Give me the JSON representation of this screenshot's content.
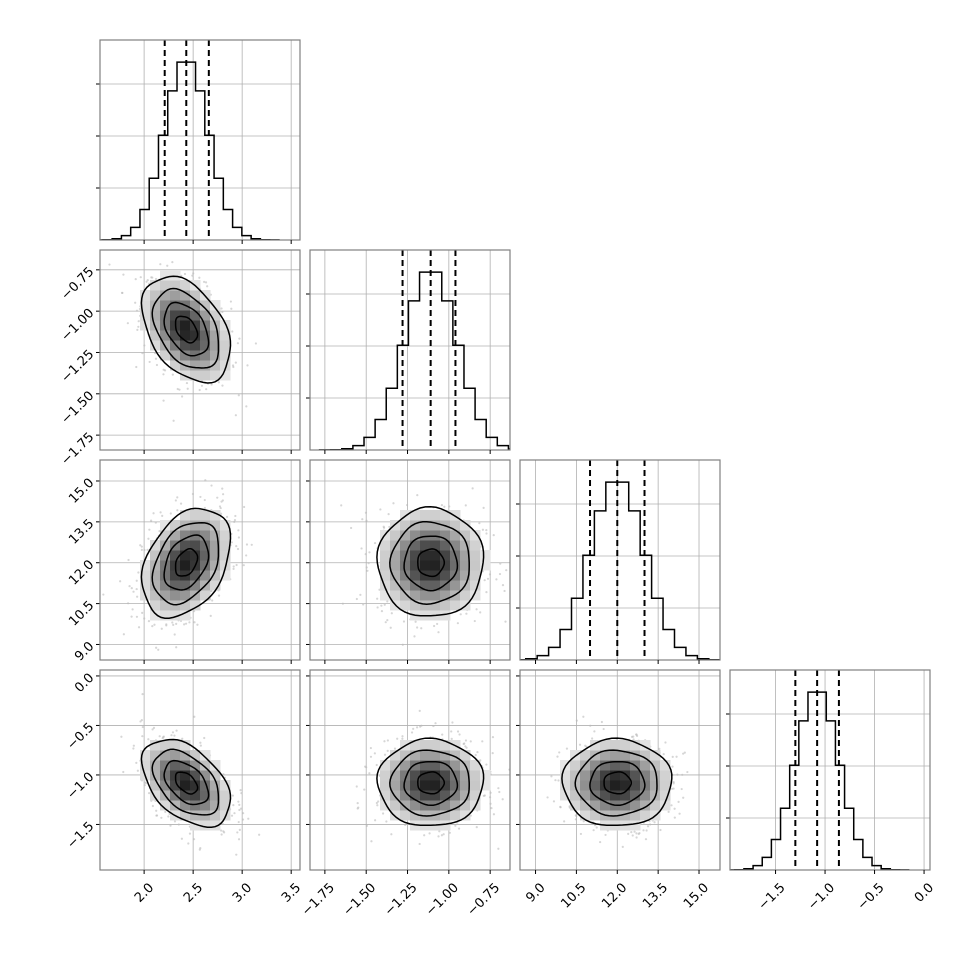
{
  "chart_data": {
    "type": "corner",
    "title": "",
    "grid": true,
    "parameters": [
      {
        "mean": 2.43,
        "sd": 0.225,
        "quantiles": [
          2.21,
          2.43,
          2.66
        ],
        "range": [
          1.55,
          3.59
        ],
        "ticks": [
          2.0,
          2.5,
          3.0,
          3.5
        ],
        "tick_labels": [
          "2.0",
          "2.5",
          "3.0",
          "3.5"
        ]
      },
      {
        "mean": -1.11,
        "sd": 0.16,
        "quantiles": [
          -1.28,
          -1.11,
          -0.96
        ],
        "range": [
          -1.84,
          -0.63
        ],
        "ticks": [
          -1.75,
          -1.5,
          -1.25,
          -1.0,
          -0.75
        ],
        "tick_labels": [
          "−1.75",
          "−1.50",
          "−1.25",
          "−1.00",
          "−0.75"
        ]
      },
      {
        "mean": 12.0,
        "sd": 1.0,
        "quantiles": [
          11.0,
          12.0,
          13.0
        ],
        "range": [
          8.43,
          15.77
        ],
        "ticks": [
          9.0,
          10.5,
          12.0,
          13.5,
          15.0
        ],
        "tick_labels": [
          "9.0",
          "10.5",
          "12.0",
          "13.5",
          "15.0"
        ]
      },
      {
        "mean": -1.08,
        "sd": 0.22,
        "quantiles": [
          -1.3,
          -1.08,
          -0.86
        ],
        "range": [
          -1.96,
          0.06
        ],
        "ticks": [
          -1.5,
          -1.0,
          -0.5,
          0.0
        ],
        "tick_labels": [
          "−1.5",
          "−1.0",
          "−0.5",
          "0.0"
        ]
      }
    ],
    "correlations": [
      [
        1,
        -0.4,
        0.35,
        -0.45
      ],
      [
        -0.4,
        1,
        0,
        0
      ],
      [
        0.35,
        0,
        1,
        0
      ],
      [
        -0.45,
        0,
        0,
        1
      ]
    ],
    "histogram_bins": 20,
    "contour_levels_sigma": [
      0.5,
      1.0,
      1.5,
      2.0
    ],
    "colors": {
      "line": "#000000",
      "grid": "#b0b0b0",
      "points": "#bbbbbb",
      "frame": "#808080"
    }
  }
}
